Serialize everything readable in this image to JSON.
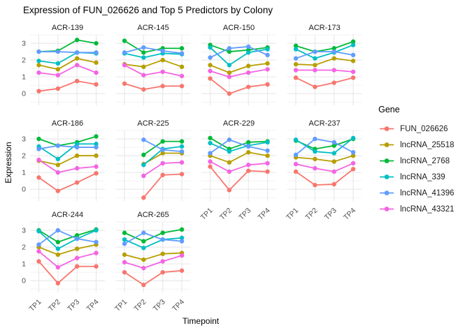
{
  "title": "Expression of FUN_026626 and Top 5 Predictors by Colony",
  "axes": {
    "x_label": "Timepoint",
    "y_label": "Expression",
    "x_ticks": [
      "TP1",
      "TP2",
      "TP3",
      "TP4"
    ],
    "y_ticks": [
      "0",
      "1",
      "2",
      "3"
    ]
  },
  "legend": {
    "title": "Gene",
    "items": [
      {
        "label": "FUN_026626",
        "color": "#F8766D"
      },
      {
        "label": "lncRNA_25518",
        "color": "#B79F00"
      },
      {
        "label": "lncRNA_2768",
        "color": "#00BA38"
      },
      {
        "label": "lncRNA_339",
        "color": "#00BFC4"
      },
      {
        "label": "lncRNA_41396",
        "color": "#619CFF"
      },
      {
        "label": "lncRNA_43321",
        "color": "#F564E3"
      }
    ]
  },
  "chart_data": {
    "type": "line",
    "facet_field": "Colony",
    "x": [
      "TP1",
      "TP2",
      "TP3",
      "TP4"
    ],
    "xlabel": "Timepoint",
    "ylabel": "Expression",
    "ylim": [
      -0.7,
      3.5
    ],
    "y_major_gridlines": [
      0,
      1,
      2,
      3
    ],
    "y_minor_gridlines": [
      -0.5,
      0.5,
      1.5,
      2.5,
      3.5
    ],
    "grid": true,
    "legend_position": "right",
    "series_names": [
      "FUN_026626",
      "lncRNA_25518",
      "lncRNA_2768",
      "lncRNA_339",
      "lncRNA_41396",
      "lncRNA_43321"
    ],
    "facets": [
      {
        "colony": "ACR-139",
        "series": {
          "FUN_026626": [
            0.15,
            0.3,
            0.75,
            0.55
          ],
          "lncRNA_25518": [
            1.7,
            1.45,
            2.1,
            1.85
          ],
          "lncRNA_2768": [
            2.5,
            2.55,
            3.2,
            3.0
          ],
          "lncRNA_339": [
            1.95,
            1.8,
            2.45,
            2.4
          ],
          "lncRNA_41396": [
            2.5,
            2.5,
            2.45,
            2.45
          ],
          "lncRNA_43321": [
            1.25,
            1.1,
            1.7,
            1.25
          ]
        }
      },
      {
        "colony": "ACR-145",
        "series": {
          "FUN_026626": [
            0.6,
            0.25,
            0.45,
            0.45
          ],
          "lncRNA_25518": [
            1.75,
            1.6,
            2.0,
            1.6
          ],
          "lncRNA_2768": [
            3.15,
            2.45,
            2.7,
            2.7
          ],
          "lncRNA_339": [
            2.4,
            2.15,
            2.4,
            2.35
          ],
          "lncRNA_41396": [
            2.45,
            2.75,
            2.55,
            2.4
          ],
          "lncRNA_43321": [
            1.7,
            1.1,
            1.3,
            1.05
          ]
        }
      },
      {
        "colony": "ACR-150",
        "series": {
          "FUN_026626": [
            0.9,
            0.0,
            0.4,
            0.55
          ],
          "lncRNA_25518": [
            1.7,
            1.25,
            1.65,
            1.8
          ],
          "lncRNA_2768": [
            2.9,
            2.5,
            2.6,
            2.75
          ],
          "lncRNA_339": [
            2.75,
            1.7,
            2.45,
            2.65
          ],
          "lncRNA_41396": [
            2.15,
            2.7,
            2.8,
            2.3
          ],
          "lncRNA_43321": [
            1.35,
            1.0,
            1.25,
            1.45
          ]
        }
      },
      {
        "colony": "ACR-173",
        "series": {
          "FUN_026626": [
            0.95,
            0.4,
            0.65,
            0.95
          ],
          "lncRNA_25518": [
            1.75,
            1.7,
            2.1,
            1.95
          ],
          "lncRNA_2768": [
            2.85,
            2.5,
            2.7,
            3.1
          ],
          "lncRNA_339": [
            2.65,
            2.1,
            2.45,
            2.9
          ],
          "lncRNA_41396": [
            2.1,
            2.5,
            2.5,
            2.3
          ],
          "lncRNA_43321": [
            1.4,
            1.4,
            1.4,
            1.3
          ]
        }
      },
      {
        "colony": "ACR-186",
        "series": {
          "FUN_026626": [
            0.7,
            -0.1,
            0.4,
            0.95
          ],
          "lncRNA_25518": [
            1.7,
            1.45,
            2.0,
            2.0
          ],
          "lncRNA_2768": [
            3.0,
            2.6,
            2.8,
            3.15
          ],
          "lncRNA_339": [
            2.55,
            1.8,
            2.7,
            2.7
          ],
          "lncRNA_41396": [
            2.4,
            2.6,
            2.5,
            2.5
          ],
          "lncRNA_43321": [
            1.75,
            1.0,
            1.25,
            1.35
          ]
        }
      },
      {
        "colony": "ACR-225",
        "series": {
          "FUN_026626": [
            null,
            -0.5,
            0.85,
            0.9
          ],
          "lncRNA_25518": [
            null,
            1.5,
            2.15,
            2.15
          ],
          "lncRNA_2768": [
            null,
            2.05,
            2.85,
            2.85
          ],
          "lncRNA_339": [
            null,
            1.45,
            2.4,
            2.55
          ],
          "lncRNA_41396": [
            null,
            2.95,
            2.35,
            2.25
          ],
          "lncRNA_43321": [
            null,
            0.8,
            1.55,
            1.6
          ]
        }
      },
      {
        "colony": "ACR-229",
        "series": {
          "FUN_026626": [
            1.35,
            -0.05,
            1.1,
            1.05
          ],
          "lncRNA_25518": [
            2.0,
            1.6,
            2.2,
            2.0
          ],
          "lncRNA_2768": [
            3.05,
            2.4,
            2.8,
            2.85
          ],
          "lncRNA_339": [
            2.75,
            2.25,
            2.6,
            2.8
          ],
          "lncRNA_41396": [
            2.15,
            2.95,
            2.55,
            2.3
          ],
          "lncRNA_43321": [
            1.65,
            1.05,
            1.45,
            1.55
          ]
        }
      },
      {
        "colony": "ACR-237",
        "series": {
          "FUN_026626": [
            1.05,
            0.25,
            0.3,
            1.2
          ],
          "lncRNA_25518": [
            1.9,
            1.8,
            1.65,
            2.0
          ],
          "lncRNA_2768": [
            2.9,
            2.4,
            2.6,
            3.0
          ],
          "lncRNA_339": [
            2.95,
            2.25,
            2.15,
            3.05
          ],
          "lncRNA_41396": [
            2.05,
            3.0,
            2.8,
            2.2
          ],
          "lncRNA_43321": [
            1.5,
            1.25,
            1.05,
            1.55
          ]
        }
      },
      {
        "colony": "ACR-244",
        "series": {
          "FUN_026626": [
            1.15,
            -0.15,
            0.85,
            0.85
          ],
          "lncRNA_25518": [
            2.0,
            1.55,
            1.9,
            2.15
          ],
          "lncRNA_2768": [
            3.0,
            2.3,
            2.7,
            3.05
          ],
          "lncRNA_339": [
            2.95,
            1.9,
            2.5,
            3.0
          ],
          "lncRNA_41396": [
            2.15,
            3.0,
            2.5,
            2.3
          ],
          "lncRNA_43321": [
            1.75,
            0.8,
            1.35,
            1.65
          ]
        }
      },
      {
        "colony": "ACR-265",
        "series": {
          "FUN_026626": [
            0.5,
            -0.25,
            0.5,
            0.6
          ],
          "lncRNA_25518": [
            1.55,
            1.25,
            1.6,
            1.65
          ],
          "lncRNA_2768": [
            2.85,
            2.35,
            2.85,
            3.05
          ],
          "lncRNA_339": [
            2.45,
            1.95,
            2.45,
            2.55
          ],
          "lncRNA_41396": [
            2.2,
            2.85,
            2.45,
            2.35
          ],
          "lncRNA_43321": [
            1.1,
            0.75,
            1.15,
            1.5
          ]
        }
      }
    ]
  }
}
